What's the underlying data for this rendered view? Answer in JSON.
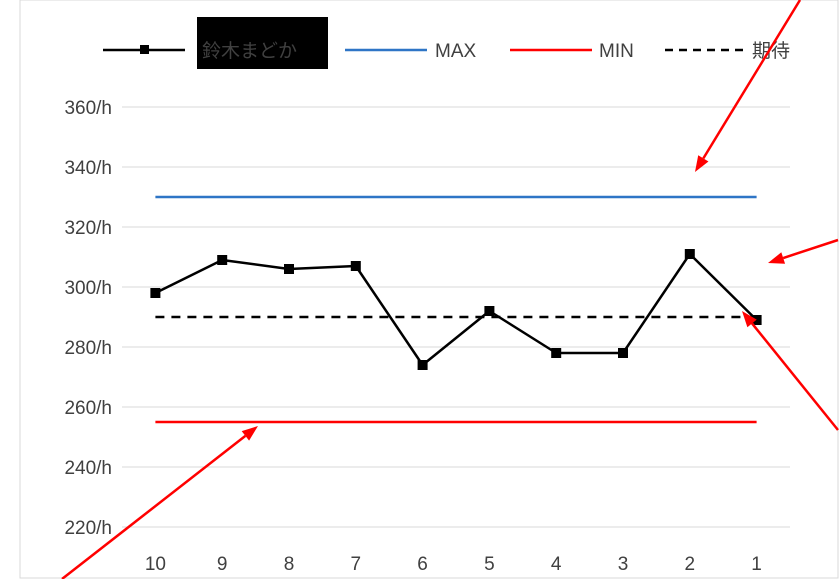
{
  "chart_data": {
    "type": "line",
    "categories": [
      "10",
      "9",
      "8",
      "7",
      "6",
      "5",
      "4",
      "3",
      "2",
      "1"
    ],
    "series": [
      {
        "name": "鈴木まどか",
        "values": [
          298,
          309,
          306,
          307,
          274,
          292,
          278,
          278,
          311,
          289
        ],
        "color": "#000000",
        "style": "solid-marker"
      },
      {
        "name": "MAX",
        "values": [
          330,
          330,
          330,
          330,
          330,
          330,
          330,
          330,
          330,
          330
        ],
        "color": "#2E75C6",
        "style": "solid"
      },
      {
        "name": "MIN",
        "values": [
          255,
          255,
          255,
          255,
          255,
          255,
          255,
          255,
          255,
          255
        ],
        "color": "#FF0000",
        "style": "solid"
      },
      {
        "name": "期待",
        "values": [
          290,
          290,
          290,
          290,
          290,
          290,
          290,
          290,
          290,
          290
        ],
        "color": "#000000",
        "style": "dashed"
      }
    ],
    "y_ticks": [
      "220/h",
      "240/h",
      "260/h",
      "280/h",
      "300/h",
      "320/h",
      "340/h",
      "360/h"
    ],
    "ylim": [
      210,
      370
    ],
    "grid": true,
    "legend_position": "top",
    "annotation_arrow_color": "#FF0000"
  }
}
